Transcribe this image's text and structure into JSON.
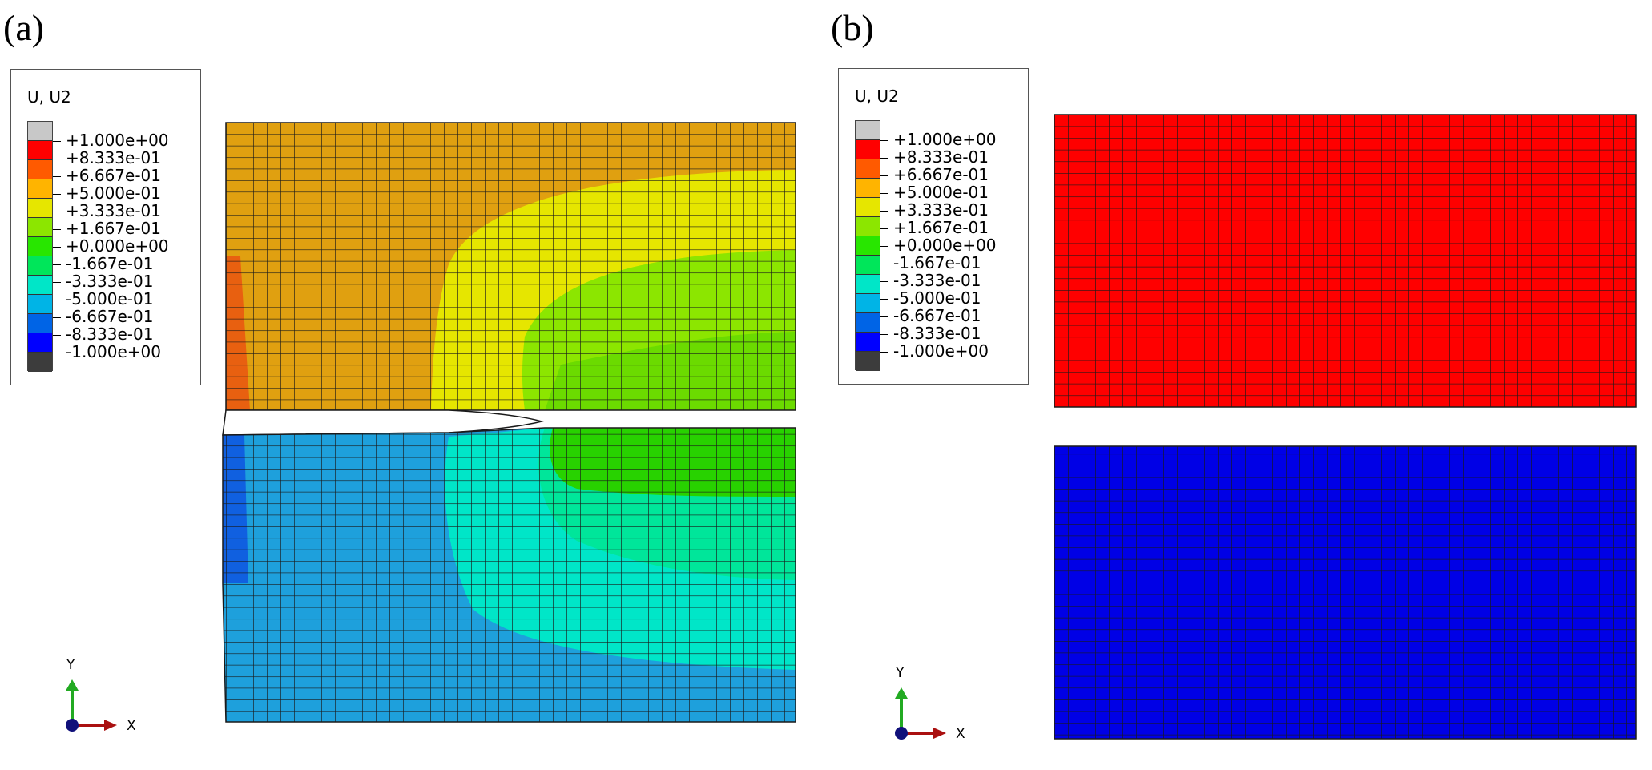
{
  "figure": {
    "panels": [
      {
        "label": "(a)",
        "legend": {
          "title": "U, U2",
          "levels": [
            "+1.000e+00",
            "+8.333e-01",
            "+6.667e-01",
            "+5.000e-01",
            "+3.333e-01",
            "+1.667e-01",
            "+0.000e+00",
            "-1.667e-01",
            "-3.333e-01",
            "-5.000e-01",
            "-6.667e-01",
            "-8.333e-01",
            "-1.000e+00"
          ]
        },
        "triad": {
          "y_label": "Y",
          "x_label": "X"
        }
      },
      {
        "label": "(b)",
        "legend": {
          "title": "U, U2",
          "levels": [
            "+1.000e+00",
            "+8.333e-01",
            "+6.667e-01",
            "+5.000e-01",
            "+3.333e-01",
            "+1.667e-01",
            "+0.000e+00",
            "-1.667e-01",
            "-3.333e-01",
            "-5.000e-01",
            "-6.667e-01",
            "-8.333e-01",
            "-1.000e+00"
          ]
        },
        "triad": {
          "y_label": "Y",
          "x_label": "X"
        }
      }
    ],
    "colormap": [
      "#c8c8c8",
      "#ff0000",
      "#ff5a00",
      "#ffb400",
      "#e6e600",
      "#8ce600",
      "#28e600",
      "#00e65a",
      "#00e6c8",
      "#00b4e6",
      "#0064e6",
      "#0000ff",
      "#3c3c3c"
    ],
    "colors": {
      "a_top_main": "#e0a010",
      "a_top_tip": "#e86010",
      "a_bottom_main": "#1ea0dc",
      "a_bottom_tip": "#1060e0",
      "b_top": "#ff0000",
      "b_bottom": "#0000e6",
      "triad_y": "#22aa22",
      "triad_x": "#aa1010",
      "triad_origin": "#10107a"
    }
  }
}
